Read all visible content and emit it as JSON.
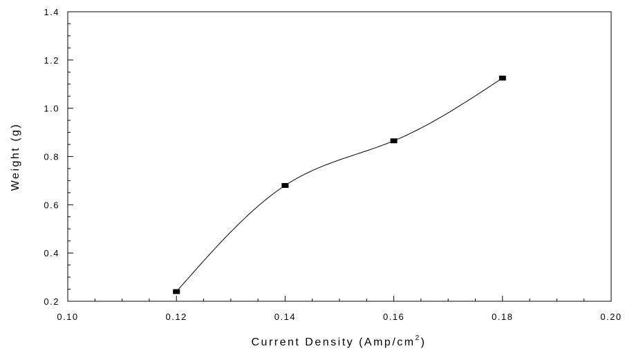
{
  "chart_data": {
    "type": "scatter",
    "title": "",
    "xlabel": "Current Density (Amp/cm",
    "xlabel_superscript": "2",
    "xlabel_suffix": ")",
    "ylabel": "Weight (g)",
    "xlim": [
      0.1,
      0.2
    ],
    "ylim": [
      0.2,
      1.4
    ],
    "x_ticks": [
      "0.10",
      "0.12",
      "0.14",
      "0.16",
      "0.18",
      "0.20"
    ],
    "y_ticks": [
      "0.2",
      "0.4",
      "0.6",
      "0.8",
      "1.0",
      "1.2",
      "1.4"
    ],
    "grid": false,
    "legend": "none",
    "series": [
      {
        "x": [
          0.12,
          0.14,
          0.16,
          0.18
        ],
        "y": [
          0.24,
          0.68,
          0.865,
          1.125
        ],
        "marker": "square",
        "line": "smooth-fit",
        "color": "#000000"
      }
    ]
  }
}
